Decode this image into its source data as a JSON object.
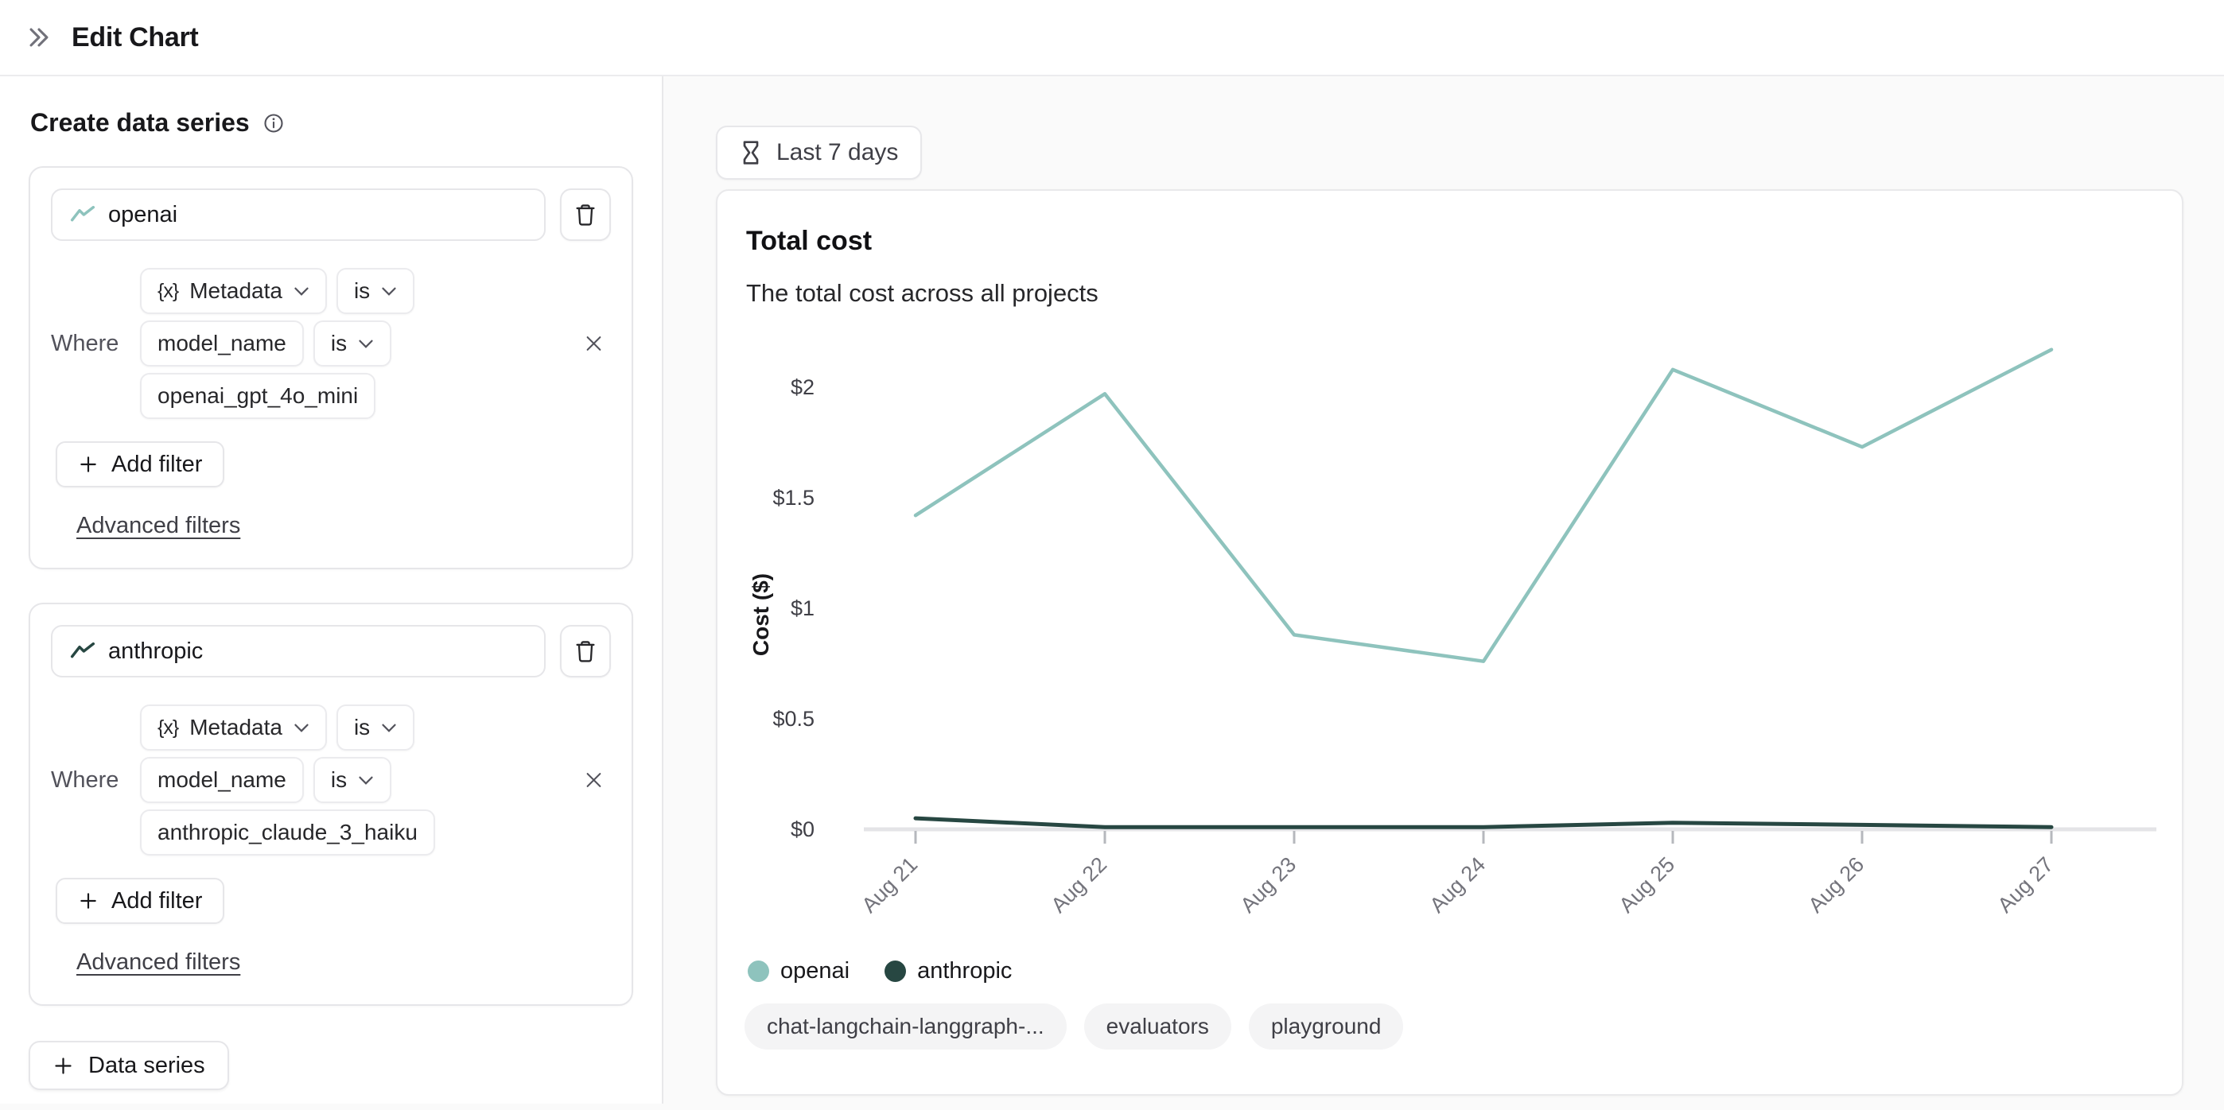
{
  "header": {
    "title": "Edit Chart"
  },
  "sidebar": {
    "section_title": "Create data series",
    "series": [
      {
        "name": "openai",
        "color": "#8ec3bd",
        "where_label": "Where",
        "filter": {
          "field": "Metadata",
          "field_operator": "is",
          "key": "model_name",
          "key_operator": "is",
          "value": "openai_gpt_4o_mini"
        },
        "add_filter_label": "Add filter",
        "advanced_filters_label": "Advanced filters"
      },
      {
        "name": "anthropic",
        "color": "#274742",
        "where_label": "Where",
        "filter": {
          "field": "Metadata",
          "field_operator": "is",
          "key": "model_name",
          "key_operator": "is",
          "value": "anthropic_claude_3_haiku"
        },
        "add_filter_label": "Add filter",
        "advanced_filters_label": "Advanced filters"
      }
    ],
    "add_series_label": "Data series"
  },
  "main": {
    "time_range_label": "Last 7 days",
    "chart_card": {
      "title": "Total cost",
      "subtitle": "The total cost across all projects",
      "tags": [
        "chat-langchain-langgraph-...",
        "evaluators",
        "playground"
      ]
    }
  },
  "chart_data": {
    "type": "line",
    "title": "Total cost",
    "xlabel": "",
    "ylabel": "Cost ($)",
    "x": [
      "Aug 21",
      "Aug 22",
      "Aug 23",
      "Aug 24",
      "Aug 25",
      "Aug 26",
      "Aug 27"
    ],
    "series": [
      {
        "name": "openai",
        "color": "#8ec3bd",
        "values": [
          1.42,
          1.97,
          0.88,
          0.76,
          2.08,
          1.73,
          2.17
        ]
      },
      {
        "name": "anthropic",
        "color": "#274742",
        "values": [
          0.05,
          0.01,
          0.01,
          0.01,
          0.03,
          0.02,
          0.01
        ]
      }
    ],
    "yticks": [
      "$0",
      "$0.5",
      "$1",
      "$1.5",
      "$2"
    ],
    "ytick_values": [
      0,
      0.5,
      1,
      1.5,
      2
    ],
    "ylim": [
      0,
      2.25
    ],
    "grid": false,
    "legend_position": "bottom"
  }
}
